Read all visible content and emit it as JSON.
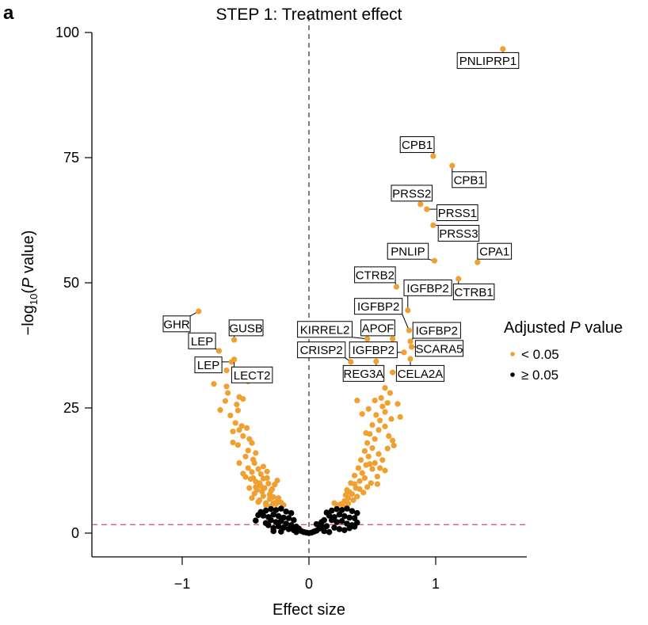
{
  "panel_letter": "a",
  "chart_data": {
    "type": "scatter",
    "title": "STEP 1: Treatment effect",
    "xlabel": "Effect size",
    "ylabel_parts": [
      "−log",
      "10",
      "(",
      "P",
      " value)"
    ],
    "xlim": [
      -1.72,
      1.72
    ],
    "ylim": [
      -4.7,
      100
    ],
    "xticks": [
      -1,
      0,
      1
    ],
    "xtick_labels": [
      "−1",
      "0",
      "1"
    ],
    "yticks": [
      0,
      25,
      50,
      75,
      100
    ],
    "ytick_labels": [
      "0",
      "25",
      "50",
      "75",
      "100"
    ],
    "grid": false,
    "reference_lines": {
      "vertical_x": 0,
      "vertical_style": "dashed-black",
      "horizontal_y": 1.7,
      "horizontal_style": "dashed-red"
    },
    "colors": {
      "significant": "#F0A030",
      "not_significant": "#000000",
      "threshold_line": "#D9203A",
      "label_border": "#000000"
    },
    "legend": {
      "title_parts": [
        "Adjusted ",
        "P",
        " value"
      ],
      "position": "right",
      "entries": [
        {
          "label": "< 0.05",
          "group": "significant"
        },
        {
          "label": "≥ 0.05",
          "group": "not_significant"
        }
      ]
    },
    "labeled_points": [
      {
        "gene": "PNLIPRP1",
        "x": 1.53,
        "y": 96.7,
        "lx": 1.17,
        "ly": 94.4,
        "anchor": "start"
      },
      {
        "gene": "CPB1",
        "x": 0.98,
        "y": 75.3,
        "lx": 0.72,
        "ly": 77.6,
        "anchor": "start"
      },
      {
        "gene": "CPB1",
        "x": 1.13,
        "y": 73.4,
        "lx": 1.13,
        "ly": 70.6,
        "anchor": "start"
      },
      {
        "gene": "PRSS2",
        "x": 0.88,
        "y": 65.7,
        "lx": 0.65,
        "ly": 67.9,
        "anchor": "start"
      },
      {
        "gene": "PRSS1",
        "x": 0.93,
        "y": 64.7,
        "lx": 1.01,
        "ly": 64.0,
        "anchor": "start"
      },
      {
        "gene": "PRSS3",
        "x": 0.98,
        "y": 61.5,
        "lx": 1.02,
        "ly": 59.9,
        "anchor": "start"
      },
      {
        "gene": "PNLIP",
        "x": 0.99,
        "y": 54.4,
        "lx": 0.62,
        "ly": 56.3,
        "anchor": "start"
      },
      {
        "gene": "CPA1",
        "x": 1.33,
        "y": 54.1,
        "lx": 1.33,
        "ly": 56.3,
        "anchor": "start"
      },
      {
        "gene": "CTRB2",
        "x": 0.69,
        "y": 49.2,
        "lx": 0.36,
        "ly": 51.6,
        "anchor": "start"
      },
      {
        "gene": "IGFBP2",
        "x": 0.78,
        "y": 44.5,
        "lx": 0.75,
        "ly": 49.0,
        "anchor": "start"
      },
      {
        "gene": "CTRB1",
        "x": 1.18,
        "y": 50.8,
        "lx": 1.14,
        "ly": 48.2,
        "anchor": "start"
      },
      {
        "gene": "IGFBP2",
        "x": 0.79,
        "y": 40.5,
        "lx": 0.36,
        "ly": 45.3,
        "anchor": "start"
      },
      {
        "gene": "KIRREL2",
        "x": 0.46,
        "y": 38.8,
        "lx": -0.09,
        "ly": 40.7,
        "anchor": "start"
      },
      {
        "gene": "APOF",
        "x": 0.66,
        "y": 38.8,
        "lx": 0.41,
        "ly": 41.0,
        "anchor": "start"
      },
      {
        "gene": "IGFBP2",
        "x": 0.8,
        "y": 38.3,
        "lx": 0.82,
        "ly": 40.5,
        "anchor": "start"
      },
      {
        "gene": "SCARA5",
        "x": 0.81,
        "y": 37.2,
        "lx": 0.84,
        "ly": 36.9,
        "anchor": "start"
      },
      {
        "gene": "CRISP2",
        "x": 0.33,
        "y": 34.2,
        "lx": -0.09,
        "ly": 36.6,
        "anchor": "start"
      },
      {
        "gene": "IGFBP2",
        "x": 0.75,
        "y": 36.1,
        "lx": 0.32,
        "ly": 36.6,
        "anchor": "start"
      },
      {
        "gene": "REG3A",
        "x": 0.53,
        "y": 34.3,
        "lx": 0.27,
        "ly": 31.9,
        "anchor": "start"
      },
      {
        "gene": "CELA2A",
        "x": 0.8,
        "y": 34.8,
        "lx": 0.69,
        "ly": 31.9,
        "anchor": "start"
      },
      {
        "gene": "CELA2A-point",
        "x": 0.66,
        "y": 32.1,
        "lx": null,
        "ly": null,
        "anchor": "none"
      },
      {
        "gene": "GHR",
        "x": -0.87,
        "y": 44.3,
        "lx": -1.15,
        "ly": 41.8,
        "anchor": "start"
      },
      {
        "gene": "GUSB",
        "x": -0.59,
        "y": 38.6,
        "lx": -0.63,
        "ly": 41.0,
        "anchor": "start"
      },
      {
        "gene": "LEP",
        "x": -0.71,
        "y": 36.4,
        "lx": -0.95,
        "ly": 38.4,
        "anchor": "start"
      },
      {
        "gene": "LEP",
        "x": -0.61,
        "y": 34.2,
        "lx": -0.9,
        "ly": 33.6,
        "anchor": "start"
      },
      {
        "gene": "LECT2",
        "x": -0.59,
        "y": 34.7,
        "lx": -0.61,
        "ly": 31.6,
        "anchor": "start"
      }
    ],
    "unlabeled_significant": [
      [
        -0.75,
        29.8
      ],
      [
        -0.65,
        29.3
      ],
      [
        -0.64,
        28.0
      ],
      [
        -0.48,
        30.3
      ],
      [
        -0.65,
        32.5
      ],
      [
        -0.55,
        27.2
      ],
      [
        -0.7,
        24.6
      ],
      [
        -0.62,
        23.5
      ],
      [
        -0.56,
        24.5
      ],
      [
        -0.53,
        21.4
      ],
      [
        -0.58,
        22.0
      ],
      [
        -0.52,
        19.4
      ],
      [
        -0.6,
        18.1
      ],
      [
        -0.56,
        17.6
      ],
      [
        -0.5,
        15.3
      ],
      [
        -0.44,
        14.7
      ],
      [
        -0.55,
        14.0
      ],
      [
        -0.48,
        13.0
      ],
      [
        -0.52,
        11.9
      ],
      [
        -0.45,
        12.2
      ],
      [
        -0.4,
        12.8
      ],
      [
        -0.36,
        13.3
      ],
      [
        -0.33,
        12.3
      ],
      [
        -0.3,
        8.4
      ],
      [
        -0.38,
        9.4
      ],
      [
        -0.42,
        10.3
      ],
      [
        -0.47,
        9.0
      ],
      [
        -0.43,
        7.9
      ],
      [
        -0.36,
        7.4
      ],
      [
        -0.31,
        6.8
      ],
      [
        -0.28,
        7.2
      ],
      [
        -0.25,
        6.3
      ],
      [
        -0.34,
        6.0
      ],
      [
        -0.4,
        6.2
      ],
      [
        -0.46,
        10.8
      ],
      [
        -0.5,
        11.2
      ],
      [
        -0.44,
        11.0
      ],
      [
        -0.39,
        10.0
      ],
      [
        -0.35,
        9.0
      ],
      [
        -0.32,
        9.9
      ],
      [
        -0.37,
        8.3
      ],
      [
        -0.29,
        8.8
      ],
      [
        -0.27,
        9.7
      ],
      [
        -0.25,
        10.5
      ],
      [
        -0.33,
        11.0
      ],
      [
        -0.38,
        11.8
      ],
      [
        -0.41,
        8.6
      ],
      [
        -0.45,
        7.0
      ],
      [
        -0.39,
        6.6
      ],
      [
        -0.34,
        5.6
      ],
      [
        -0.3,
        5.4
      ],
      [
        -0.26,
        5.8
      ],
      [
        -0.22,
        6.1
      ],
      [
        -0.2,
        5.6
      ],
      [
        -0.48,
        16.5
      ],
      [
        -0.42,
        16.0
      ],
      [
        -0.47,
        18.8
      ],
      [
        -0.55,
        20.6
      ],
      [
        -0.49,
        21.0
      ],
      [
        -0.45,
        18.0
      ],
      [
        -0.6,
        20.3
      ],
      [
        -0.66,
        26.4
      ],
      [
        -0.57,
        25.7
      ],
      [
        -0.52,
        26.8
      ],
      [
        -0.43,
        14.0
      ],
      [
        -0.36,
        10.9
      ],
      [
        -0.31,
        7.7
      ],
      [
        -0.24,
        7.0
      ],
      [
        -0.28,
        6.0
      ],
      [
        -0.42,
        9.2
      ],
      [
        0.25,
        5.8
      ],
      [
        0.28,
        6.4
      ],
      [
        0.31,
        7.0
      ],
      [
        0.34,
        7.8
      ],
      [
        0.3,
        8.6
      ],
      [
        0.37,
        9.0
      ],
      [
        0.33,
        10.0
      ],
      [
        0.4,
        10.4
      ],
      [
        0.36,
        11.5
      ],
      [
        0.42,
        12.0
      ],
      [
        0.39,
        13.0
      ],
      [
        0.45,
        13.6
      ],
      [
        0.41,
        14.6
      ],
      [
        0.47,
        15.3
      ],
      [
        0.44,
        16.4
      ],
      [
        0.5,
        17.0
      ],
      [
        0.46,
        18.0
      ],
      [
        0.52,
        18.8
      ],
      [
        0.48,
        19.8
      ],
      [
        0.55,
        20.6
      ],
      [
        0.5,
        21.6
      ],
      [
        0.56,
        22.5
      ],
      [
        0.53,
        23.6
      ],
      [
        0.6,
        24.2
      ],
      [
        0.58,
        25.3
      ],
      [
        0.62,
        26.0
      ],
      [
        0.57,
        27.0
      ],
      [
        0.64,
        28.0
      ],
      [
        0.6,
        29.0
      ],
      [
        0.52,
        26.5
      ],
      [
        0.47,
        24.8
      ],
      [
        0.42,
        23.8
      ],
      [
        0.38,
        26.5
      ],
      [
        0.7,
        25.8
      ],
      [
        0.72,
        23.2
      ],
      [
        0.66,
        18.5
      ],
      [
        0.62,
        16.9
      ],
      [
        0.67,
        17.5
      ],
      [
        0.55,
        15.8
      ],
      [
        0.58,
        14.6
      ],
      [
        0.6,
        12.5
      ],
      [
        0.54,
        11.3
      ],
      [
        0.49,
        10.0
      ],
      [
        0.46,
        9.2
      ],
      [
        0.43,
        8.1
      ],
      [
        0.38,
        7.3
      ],
      [
        0.35,
        6.6
      ],
      [
        0.31,
        5.9
      ],
      [
        0.27,
        5.4
      ],
      [
        0.22,
        5.6
      ],
      [
        0.2,
        6.0
      ],
      [
        0.32,
        8.2
      ],
      [
        0.4,
        8.8
      ],
      [
        0.44,
        11.0
      ],
      [
        0.5,
        12.8
      ],
      [
        0.52,
        14.0
      ],
      [
        0.56,
        13.0
      ],
      [
        0.48,
        13.8
      ],
      [
        0.63,
        19.4
      ],
      [
        0.6,
        21.3
      ],
      [
        0.65,
        22.8
      ],
      [
        0.45,
        20.0
      ],
      [
        0.54,
        9.8
      ],
      [
        0.29,
        7.6
      ],
      [
        0.36,
        9.8
      ]
    ],
    "unlabeled_not_significant": [
      [
        -0.38,
        4.2
      ],
      [
        -0.34,
        4.5
      ],
      [
        -0.3,
        4.8
      ],
      [
        -0.26,
        4.6
      ],
      [
        -0.22,
        4.9
      ],
      [
        -0.18,
        4.3
      ],
      [
        -0.14,
        4.0
      ],
      [
        -0.36,
        3.5
      ],
      [
        -0.32,
        3.2
      ],
      [
        -0.28,
        3.7
      ],
      [
        -0.24,
        3.4
      ],
      [
        -0.2,
        3.1
      ],
      [
        -0.16,
        3.0
      ],
      [
        -0.12,
        2.6
      ],
      [
        -0.3,
        2.6
      ],
      [
        -0.26,
        2.2
      ],
      [
        -0.22,
        2.4
      ],
      [
        -0.18,
        1.9
      ],
      [
        -0.14,
        1.6
      ],
      [
        -0.1,
        1.3
      ],
      [
        -0.08,
        0.9
      ],
      [
        -0.24,
        1.4
      ],
      [
        -0.2,
        1.1
      ],
      [
        -0.16,
        0.8
      ],
      [
        -0.12,
        0.6
      ],
      [
        -0.06,
        0.4
      ],
      [
        -0.04,
        0.2
      ],
      [
        -0.02,
        0.1
      ],
      [
        -0.28,
        1.0
      ],
      [
        -0.32,
        1.6
      ],
      [
        -0.34,
        2.0
      ],
      [
        -0.4,
        3.6
      ],
      [
        -0.42,
        2.5
      ],
      [
        -0.28,
        0.4
      ],
      [
        -0.22,
        0.3
      ],
      [
        -0.1,
        0.2
      ],
      [
        0.0,
        0.0
      ],
      [
        0.02,
        0.1
      ],
      [
        0.04,
        0.3
      ],
      [
        0.06,
        0.5
      ],
      [
        0.14,
        4.1
      ],
      [
        0.18,
        4.5
      ],
      [
        0.22,
        4.8
      ],
      [
        0.26,
        4.6
      ],
      [
        0.3,
        4.9
      ],
      [
        0.34,
        4.4
      ],
      [
        0.38,
        4.0
      ],
      [
        0.16,
        3.5
      ],
      [
        0.2,
        3.2
      ],
      [
        0.24,
        3.7
      ],
      [
        0.28,
        3.4
      ],
      [
        0.32,
        3.1
      ],
      [
        0.36,
        3.0
      ],
      [
        0.12,
        2.6
      ],
      [
        0.18,
        2.6
      ],
      [
        0.22,
        2.2
      ],
      [
        0.26,
        2.4
      ],
      [
        0.3,
        1.9
      ],
      [
        0.34,
        1.6
      ],
      [
        0.1,
        1.3
      ],
      [
        0.08,
        0.9
      ],
      [
        0.14,
        1.4
      ],
      [
        0.2,
        1.1
      ],
      [
        0.24,
        0.8
      ],
      [
        0.28,
        0.6
      ],
      [
        0.12,
        0.4
      ],
      [
        0.16,
        0.2
      ],
      [
        0.32,
        1.0
      ],
      [
        0.38,
        2.1
      ],
      [
        0.36,
        1.3
      ],
      [
        0.06,
        1.8
      ],
      [
        0.1,
        2.2
      ]
    ]
  }
}
